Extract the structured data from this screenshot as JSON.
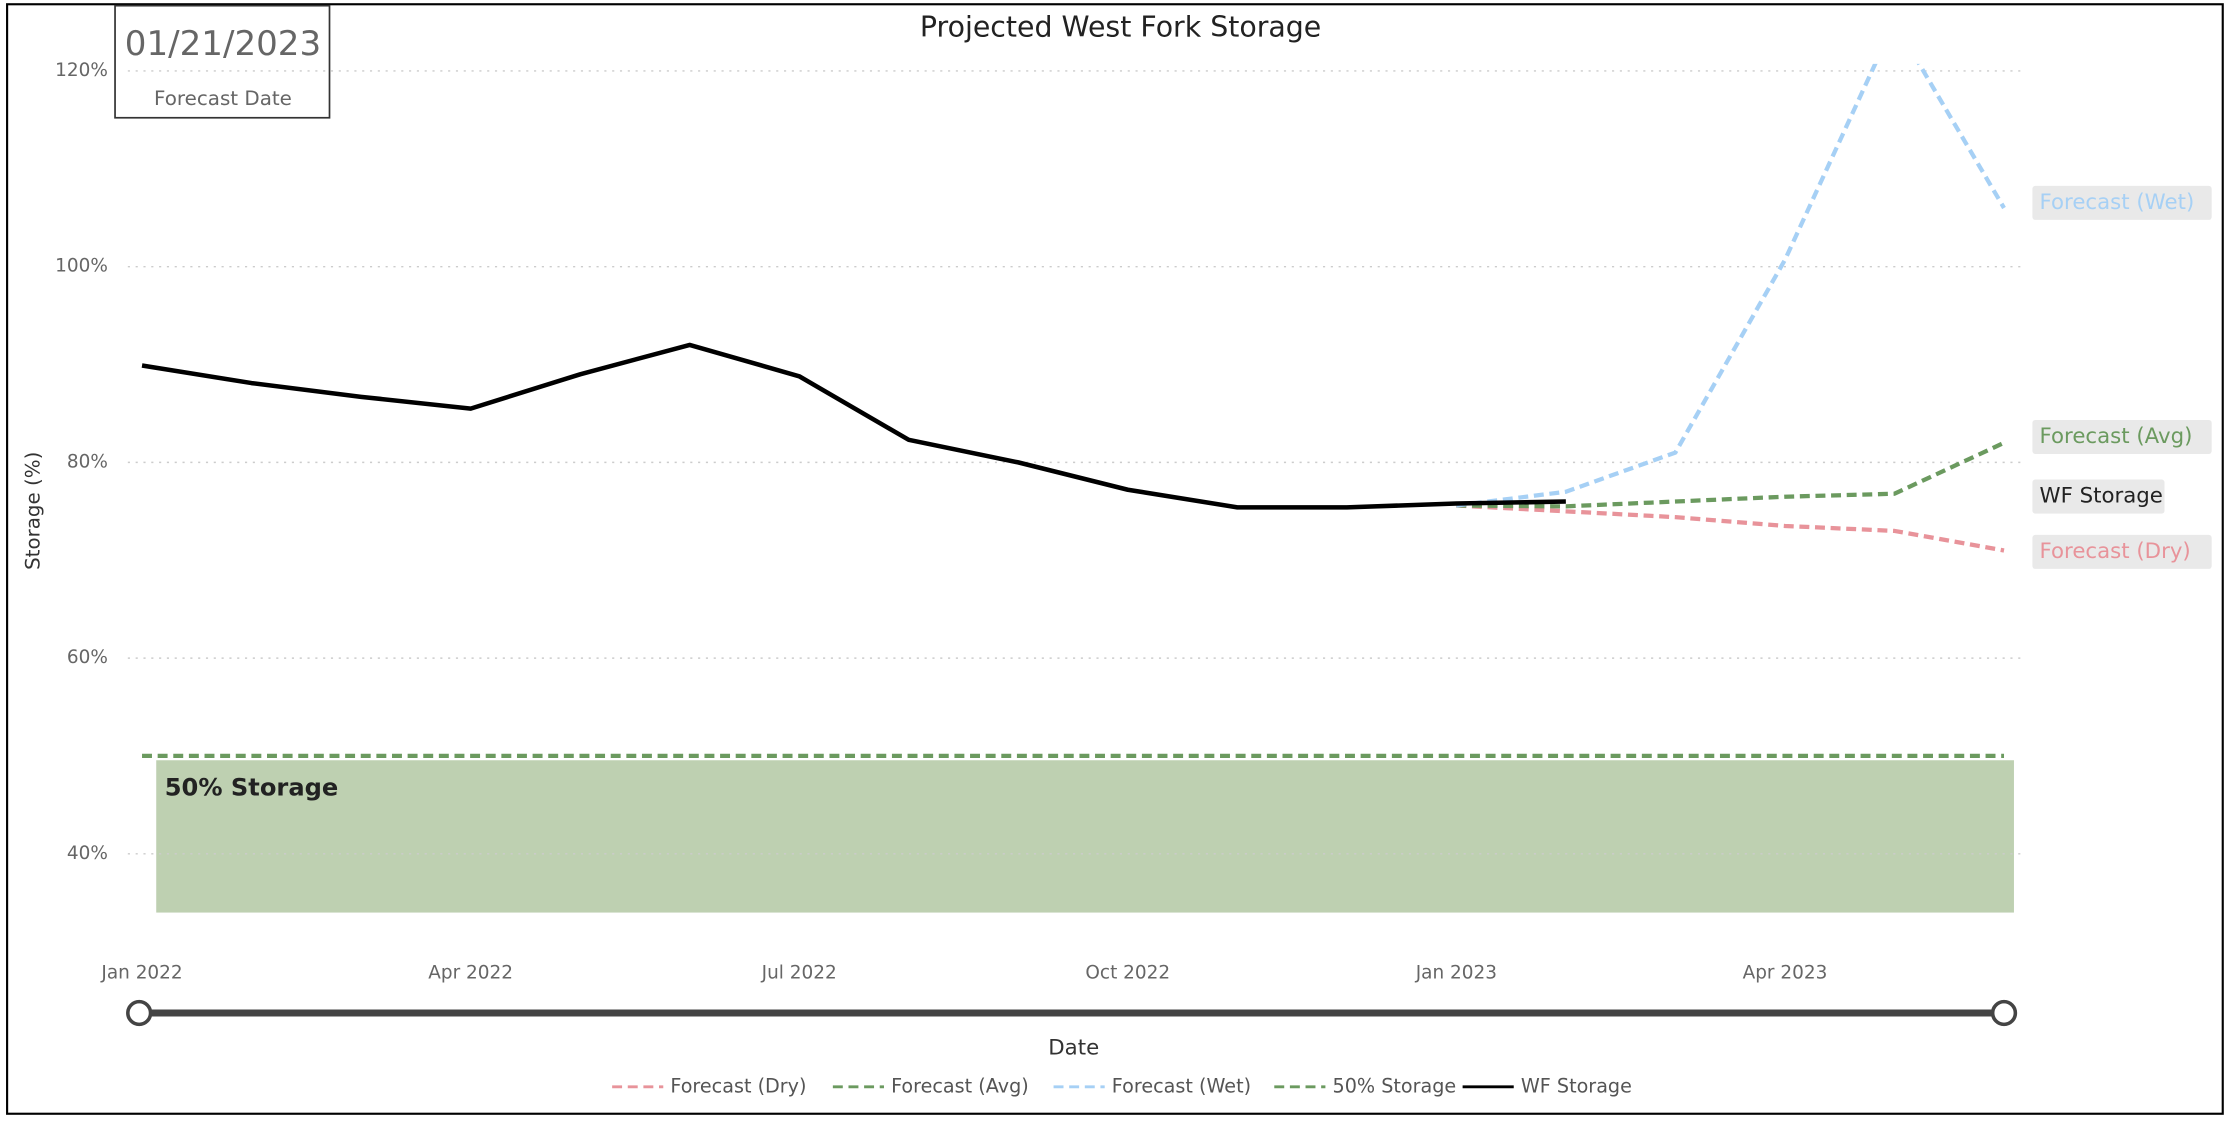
{
  "forecast_card": {
    "value": "01/21/2023",
    "label": "Forecast Date"
  },
  "chart_data": {
    "type": "line",
    "title": "Projected West Fork Storage",
    "x_label": "Date",
    "y_label": "Storage (%)",
    "x": [
      "2022-01",
      "2022-02",
      "2022-03",
      "2022-04",
      "2022-05",
      "2022-06",
      "2022-07",
      "2022-08",
      "2022-09",
      "2022-10",
      "2022-11",
      "2022-12",
      "2023-01",
      "2023-02",
      "2023-03",
      "2023-04",
      "2023-05",
      "2023-06"
    ],
    "xlim": [
      "2022-01",
      "2023-06"
    ],
    "xticks": [
      {
        "value": "2022-01",
        "label": "Jan 2022"
      },
      {
        "value": "2022-04",
        "label": "Apr 2022"
      },
      {
        "value": "2022-07",
        "label": "Jul 2022"
      },
      {
        "value": "2022-10",
        "label": "Oct 2022"
      },
      {
        "value": "2023-01",
        "label": "Jan 2023"
      },
      {
        "value": "2023-04",
        "label": "Apr 2023"
      }
    ],
    "ylim": [
      32,
      120
    ],
    "yticks": [
      {
        "value": 40,
        "label": "40%"
      },
      {
        "value": 60,
        "label": "60%"
      },
      {
        "value": 80,
        "label": "80%"
      },
      {
        "value": 100,
        "label": "100%"
      },
      {
        "value": 120,
        "label": "120%"
      }
    ],
    "grid": true,
    "legend": "bottom",
    "series": [
      {
        "name": "Forecast (Dry)",
        "color": "#e8939a",
        "dash": true,
        "values": [
          null,
          null,
          null,
          null,
          null,
          null,
          null,
          null,
          null,
          null,
          null,
          null,
          75.6,
          75.0,
          74.4,
          73.5,
          73.0,
          71.0
        ]
      },
      {
        "name": "Forecast (Avg)",
        "color": "#6b9a5f",
        "dash": true,
        "values": [
          null,
          null,
          null,
          null,
          null,
          null,
          null,
          null,
          null,
          null,
          null,
          null,
          75.6,
          75.5,
          76.0,
          76.5,
          76.8,
          82.0
        ]
      },
      {
        "name": "Forecast (Wet)",
        "color": "#a6d0f5",
        "dash": true,
        "values": [
          null,
          null,
          null,
          null,
          null,
          null,
          null,
          null,
          null,
          null,
          null,
          null,
          75.6,
          77.0,
          81.0,
          100.7,
          125.0,
          106.0
        ]
      },
      {
        "name": "50% Storage",
        "color": "#6b9a5f",
        "dash": true,
        "values": [
          50,
          50,
          50,
          50,
          50,
          50,
          50,
          50,
          50,
          50,
          50,
          50,
          50,
          50,
          50,
          50,
          50,
          50
        ]
      },
      {
        "name": "WF Storage",
        "color": "#000000",
        "dash": false,
        "values": [
          89.9,
          88.1,
          86.7,
          85.5,
          89.0,
          92.0,
          88.8,
          82.3,
          80.0,
          77.2,
          75.4,
          75.4,
          75.8,
          76.0,
          null,
          null,
          null,
          null
        ]
      }
    ],
    "annotations": [
      {
        "text": "50% Storage",
        "band": [
          34,
          50
        ],
        "color": "#bed0b1"
      }
    ]
  }
}
